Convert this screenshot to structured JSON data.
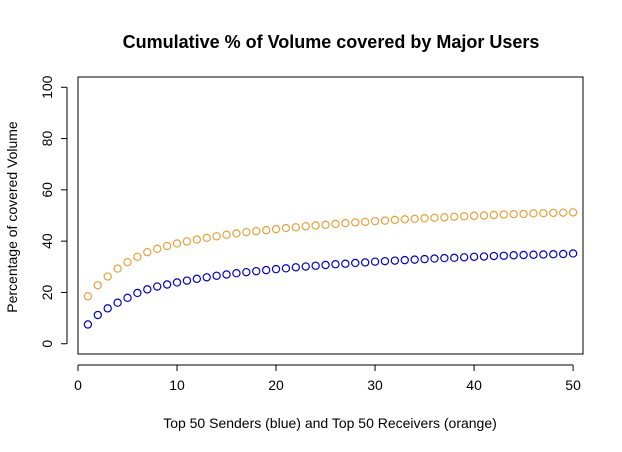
{
  "chart_data": {
    "type": "scatter",
    "title": "Cumulative % of Volume covered by Major Users",
    "xlabel": "Top 50 Senders (blue) and Top 50 Receivers (orange)",
    "ylabel": "Percentage of covered Volume",
    "xlim": [
      0,
      51
    ],
    "ylim": [
      -4,
      104
    ],
    "x_ticks": [
      "0",
      "10",
      "20",
      "30",
      "40",
      "50"
    ],
    "y_ticks": [
      "0",
      "20",
      "40",
      "60",
      "80",
      "100"
    ],
    "grid": false,
    "marker": "open-circle",
    "x": [
      1,
      2,
      3,
      4,
      5,
      6,
      7,
      8,
      9,
      10,
      11,
      12,
      13,
      14,
      15,
      16,
      17,
      18,
      19,
      20,
      21,
      22,
      23,
      24,
      25,
      26,
      27,
      28,
      29,
      30,
      31,
      32,
      33,
      34,
      35,
      36,
      37,
      38,
      39,
      40,
      41,
      42,
      43,
      44,
      45,
      46,
      47,
      48,
      49,
      50
    ],
    "series": [
      {
        "color": "#0000cc",
        "values": [
          7.5,
          11.2,
          13.8,
          16.0,
          17.9,
          19.8,
          21.2,
          22.3,
          23.1,
          23.9,
          24.6,
          25.3,
          25.9,
          26.5,
          27.0,
          27.5,
          27.9,
          28.3,
          28.7,
          29.1,
          29.4,
          29.8,
          30.1,
          30.4,
          30.7,
          31.0,
          31.2,
          31.5,
          31.7,
          32.0,
          32.2,
          32.4,
          32.6,
          32.8,
          33.0,
          33.2,
          33.4,
          33.5,
          33.7,
          33.9,
          34.0,
          34.2,
          34.3,
          34.5,
          34.6,
          34.7,
          34.8,
          34.9,
          35.0,
          35.2
        ]
      },
      {
        "color": "#e8a03a",
        "values": [
          18.5,
          22.8,
          26.2,
          29.3,
          31.8,
          33.9,
          35.7,
          37.0,
          38.1,
          39.1,
          39.9,
          40.6,
          41.3,
          41.9,
          42.5,
          43.0,
          43.5,
          43.9,
          44.3,
          44.7,
          45.1,
          45.4,
          45.8,
          46.1,
          46.4,
          46.7,
          47.0,
          47.3,
          47.5,
          47.8,
          48.0,
          48.3,
          48.5,
          48.7,
          48.9,
          49.1,
          49.3,
          49.5,
          49.7,
          49.9,
          50.0,
          50.2,
          50.4,
          50.5,
          50.6,
          50.8,
          50.9,
          51.0,
          51.1,
          51.2
        ]
      }
    ]
  }
}
